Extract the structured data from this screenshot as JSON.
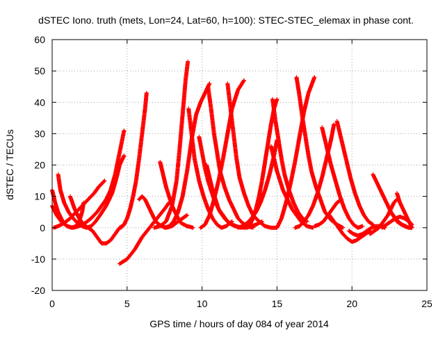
{
  "chart_data": {
    "type": "scatter",
    "title": "dSTEC Iono. truth (mets, Lon=24, Lat=60, h=100): STEC-STEC_elemax in phase cont.",
    "xlabel": "GPS time / hours of day 084 of year 2014",
    "ylabel": "dSTEC  / TECUs",
    "xlim": [
      0,
      25
    ],
    "ylim": [
      -20,
      60
    ],
    "xticks": [
      0,
      5,
      10,
      15,
      20,
      25
    ],
    "yticks": [
      -20,
      -10,
      0,
      10,
      20,
      30,
      40,
      50,
      60
    ],
    "xtick_labels": [
      "0",
      "5",
      "10",
      "15",
      "20",
      "25"
    ],
    "ytick_labels": [
      "-20",
      "-10",
      "0",
      "10",
      "20",
      "30",
      "40",
      "50",
      "60"
    ],
    "grid": true,
    "legend": "none",
    "marker": "plus",
    "color": "#ff0000",
    "series": [
      {
        "x": [
          0.0,
          0.2,
          0.4,
          0.7,
          1.0,
          1.3,
          1.6,
          1.8,
          2.0,
          2.1
        ],
        "y": [
          12,
          8,
          5,
          2,
          0.5,
          0,
          0.5,
          2,
          5,
          8
        ]
      },
      {
        "x": [
          0.0,
          0.3,
          0.6,
          1.0,
          1.4,
          1.8,
          2.2,
          2.6,
          3.0,
          3.3,
          3.6,
          3.9,
          4.2,
          4.5,
          4.8
        ],
        "y": [
          7,
          4,
          2,
          0.5,
          0,
          0.5,
          1.5,
          3,
          5,
          7,
          9,
          12,
          17,
          24,
          31
        ]
      },
      {
        "x": [
          0.1,
          0.4,
          0.8,
          1.2,
          1.6,
          2.0,
          2.4,
          2.8,
          3.1,
          3.3,
          3.5
        ],
        "y": [
          0,
          0.5,
          1.5,
          3,
          5,
          7,
          9,
          11,
          13,
          14,
          15
        ]
      },
      {
        "x": [
          0.4,
          0.55,
          0.8,
          1.1,
          1.4,
          1.7,
          2.0,
          2.3,
          2.6,
          2.9,
          3.2,
          3.6,
          4.0,
          4.3,
          4.5,
          4.8
        ],
        "y": [
          17,
          12,
          8,
          5,
          3,
          1.5,
          0.5,
          0,
          0.5,
          2,
          4,
          7,
          11,
          16,
          20,
          23
        ]
      },
      {
        "x": [
          1.2,
          1.5,
          1.8,
          2.1,
          2.4,
          2.7,
          3.0,
          3.3,
          3.6,
          3.9,
          4.2,
          4.5,
          4.8
        ],
        "y": [
          10,
          6,
          3,
          1,
          0,
          -1,
          -3,
          -5,
          -5,
          -4,
          -2,
          0,
          1
        ]
      },
      {
        "x": [
          4.5,
          5.0,
          5.5,
          6.0,
          6.5,
          7.0,
          7.5,
          7.8
        ],
        "y": [
          -11.5,
          -10,
          -7,
          -3,
          0,
          3,
          6,
          8
        ]
      },
      {
        "x": [
          5.8,
          6.0,
          6.2,
          6.5,
          6.8,
          7.0,
          7.3,
          7.6,
          8.0,
          8.4,
          8.7,
          9.0
        ],
        "y": [
          9,
          10,
          9,
          6,
          3,
          1.5,
          0.5,
          0,
          0.5,
          2,
          3,
          4
        ]
      },
      {
        "x": [
          4.6,
          4.8,
          5.0,
          5.2,
          5.4,
          5.6,
          5.8,
          6.0,
          6.2,
          6.3
        ],
        "y": [
          0,
          1,
          3,
          6,
          10,
          15,
          22,
          30,
          38,
          43
        ]
      },
      {
        "x": [
          7.2,
          7.4,
          7.6,
          7.8,
          8.0,
          8.2,
          8.4,
          8.6,
          8.8,
          9.0,
          9.2,
          9.4
        ],
        "y": [
          21,
          17,
          13,
          10,
          7,
          5,
          3,
          1.5,
          1,
          0.5,
          0.3,
          0
        ]
      },
      {
        "x": [
          6.8,
          7.2,
          7.6,
          8.0,
          8.3,
          8.5,
          8.7,
          8.9,
          9.05
        ],
        "y": [
          0,
          0.5,
          2,
          7,
          15,
          25,
          36,
          47,
          53
        ]
      },
      {
        "x": [
          7.5,
          7.8,
          8.1,
          8.4,
          8.7,
          9.0,
          9.3,
          9.6,
          9.9,
          10.2,
          10.5
        ],
        "y": [
          0,
          0.5,
          2,
          5,
          10,
          18,
          28,
          36,
          40,
          43,
          46
        ]
      },
      {
        "x": [
          9.1,
          9.3,
          9.5,
          9.8,
          10.1,
          10.4,
          10.7,
          11.0,
          11.3,
          11.6,
          12.0
        ],
        "y": [
          38,
          30,
          22,
          15,
          10,
          6,
          3,
          1,
          0,
          0.5,
          2
        ]
      },
      {
        "x": [
          9.8,
          10.0,
          10.2,
          10.4,
          10.6,
          10.8,
          11.0,
          11.2,
          11.5,
          11.8,
          12.2,
          12.6
        ],
        "y": [
          29,
          24,
          19,
          15,
          12,
          9,
          7,
          5,
          3,
          1.5,
          0.5,
          0
        ]
      },
      {
        "x": [
          9.9,
          10.2,
          10.5,
          10.8,
          11.1,
          11.4,
          11.7,
          12.0,
          12.4,
          12.8
        ],
        "y": [
          0,
          1,
          4,
          9,
          15,
          22,
          30,
          38,
          44,
          47
        ]
      },
      {
        "x": [
          10.4,
          10.6,
          10.8,
          11.0,
          11.2,
          11.5,
          11.8,
          12.1,
          12.4,
          12.7,
          13.0,
          13.4
        ],
        "y": [
          45,
          38,
          30,
          24,
          18,
          13,
          9,
          6,
          3,
          1.5,
          0.5,
          0
        ]
      },
      {
        "x": [
          10.3,
          10.5,
          10.7,
          10.9,
          11.1,
          11.4,
          11.7,
          12.0,
          12.4,
          12.8,
          13.2,
          13.6,
          14.0
        ],
        "y": [
          20,
          16,
          12,
          9,
          6,
          4,
          2,
          1,
          0.3,
          0,
          0.3,
          1,
          2
        ]
      },
      {
        "x": [
          11.7,
          11.9,
          12.1,
          12.3,
          12.5,
          12.8,
          13.1,
          13.4,
          13.8,
          14.2,
          14.6,
          15.0
        ],
        "y": [
          46,
          38,
          30,
          22,
          16,
          11,
          7,
          4,
          2,
          0.5,
          0,
          0
        ]
      },
      {
        "x": [
          12.4,
          12.7,
          13.0,
          13.3,
          13.6,
          13.9,
          14.2,
          14.5,
          14.8,
          15.0
        ],
        "y": [
          0,
          0.5,
          1.5,
          3,
          5,
          8,
          12,
          17,
          23,
          28
        ]
      },
      {
        "x": [
          13.0,
          13.2,
          13.4,
          13.6,
          13.8,
          14.0,
          14.2,
          14.4,
          14.6,
          14.8,
          15.0
        ],
        "y": [
          0,
          1,
          3,
          6,
          10,
          15,
          21,
          27,
          33,
          38,
          41
        ]
      },
      {
        "x": [
          14.7,
          14.9,
          15.1,
          15.3,
          15.5,
          15.8,
          16.1,
          16.4,
          16.7,
          17.0
        ],
        "y": [
          41,
          34,
          28,
          22,
          17,
          12,
          8,
          5,
          3,
          2
        ]
      },
      {
        "x": [
          14.6,
          14.8,
          15.0,
          15.2,
          15.4,
          15.7,
          16.0,
          16.3,
          16.6,
          17.0,
          17.4
        ],
        "y": [
          26,
          22,
          18,
          15,
          12,
          9,
          6,
          4,
          2,
          0.5,
          0
        ]
      },
      {
        "x": [
          15.0,
          15.3,
          15.6,
          15.9,
          16.2,
          16.5,
          16.8,
          17.1,
          17.5
        ],
        "y": [
          0,
          3,
          8,
          14,
          21,
          29,
          37,
          43,
          48
        ]
      },
      {
        "x": [
          16.3,
          16.5,
          16.7,
          16.9,
          17.1,
          17.3,
          17.6,
          17.9,
          18.2,
          18.6,
          19.0,
          19.4
        ],
        "y": [
          48,
          42,
          35,
          29,
          23,
          18,
          13,
          9,
          5,
          2.5,
          1,
          0
        ]
      },
      {
        "x": [
          16.2,
          16.5,
          16.8,
          17.1,
          17.4,
          17.7,
          18.0,
          18.3,
          18.6,
          18.8
        ],
        "y": [
          0,
          0.5,
          2,
          4,
          7,
          11,
          16,
          22,
          28,
          33
        ]
      },
      {
        "x": [
          18.0,
          18.3,
          18.6,
          18.9,
          19.2,
          19.5,
          19.8,
          20.1,
          20.4,
          20.7
        ],
        "y": [
          32,
          26,
          20,
          15,
          10,
          6,
          3,
          1,
          0,
          0.5
        ]
      },
      {
        "x": [
          19.0,
          19.3,
          19.6,
          19.9,
          20.2,
          20.5,
          20.8,
          21.1,
          21.4
        ],
        "y": [
          34,
          28,
          22,
          16,
          11,
          7,
          4,
          2,
          1
        ]
      },
      {
        "x": [
          18.5,
          18.8,
          19.1,
          19.4,
          19.7,
          20.0,
          20.3,
          20.6,
          20.9,
          21.2
        ],
        "y": [
          4,
          2,
          0,
          -2,
          -3.5,
          -4.5,
          -4,
          -3,
          -2,
          -1
        ]
      },
      {
        "x": [
          17.5,
          17.8,
          18.1,
          18.4,
          18.7,
          19.0,
          19.3
        ],
        "y": [
          0.5,
          1,
          2,
          4,
          6,
          8,
          9
        ]
      },
      {
        "x": [
          19.8,
          20.1,
          20.4,
          20.7,
          21.0,
          21.3,
          21.6,
          21.9,
          22.2
        ],
        "y": [
          -1,
          -2,
          -2.5,
          -2,
          -1,
          0,
          0.5,
          0.5,
          0
        ]
      },
      {
        "x": [
          21.4,
          21.6,
          21.8,
          22.0,
          22.2,
          22.4,
          22.6,
          22.8,
          23.0,
          23.3,
          23.6
        ],
        "y": [
          17,
          15,
          13,
          11,
          9,
          7,
          5,
          3.5,
          2,
          1,
          0.5
        ]
      },
      {
        "x": [
          21.2,
          21.5,
          21.8,
          22.1,
          22.4,
          22.6,
          22.8,
          23.0
        ],
        "y": [
          -2,
          -1,
          0,
          2,
          4,
          6,
          8,
          9
        ]
      },
      {
        "x": [
          22.0,
          22.3,
          22.6,
          22.9,
          23.2,
          23.5,
          23.8,
          24.0
        ],
        "y": [
          0,
          1,
          2,
          3,
          3.5,
          3,
          2,
          1
        ]
      },
      {
        "x": [
          23.0,
          23.2,
          23.4,
          23.6,
          23.8,
          24.0
        ],
        "y": [
          11,
          8,
          6,
          4,
          2,
          0
        ]
      },
      {
        "x": [
          22.6,
          22.9,
          23.2,
          23.5,
          23.8,
          24.0
        ],
        "y": [
          5,
          3,
          1.5,
          0.5,
          0,
          0
        ]
      }
    ]
  }
}
